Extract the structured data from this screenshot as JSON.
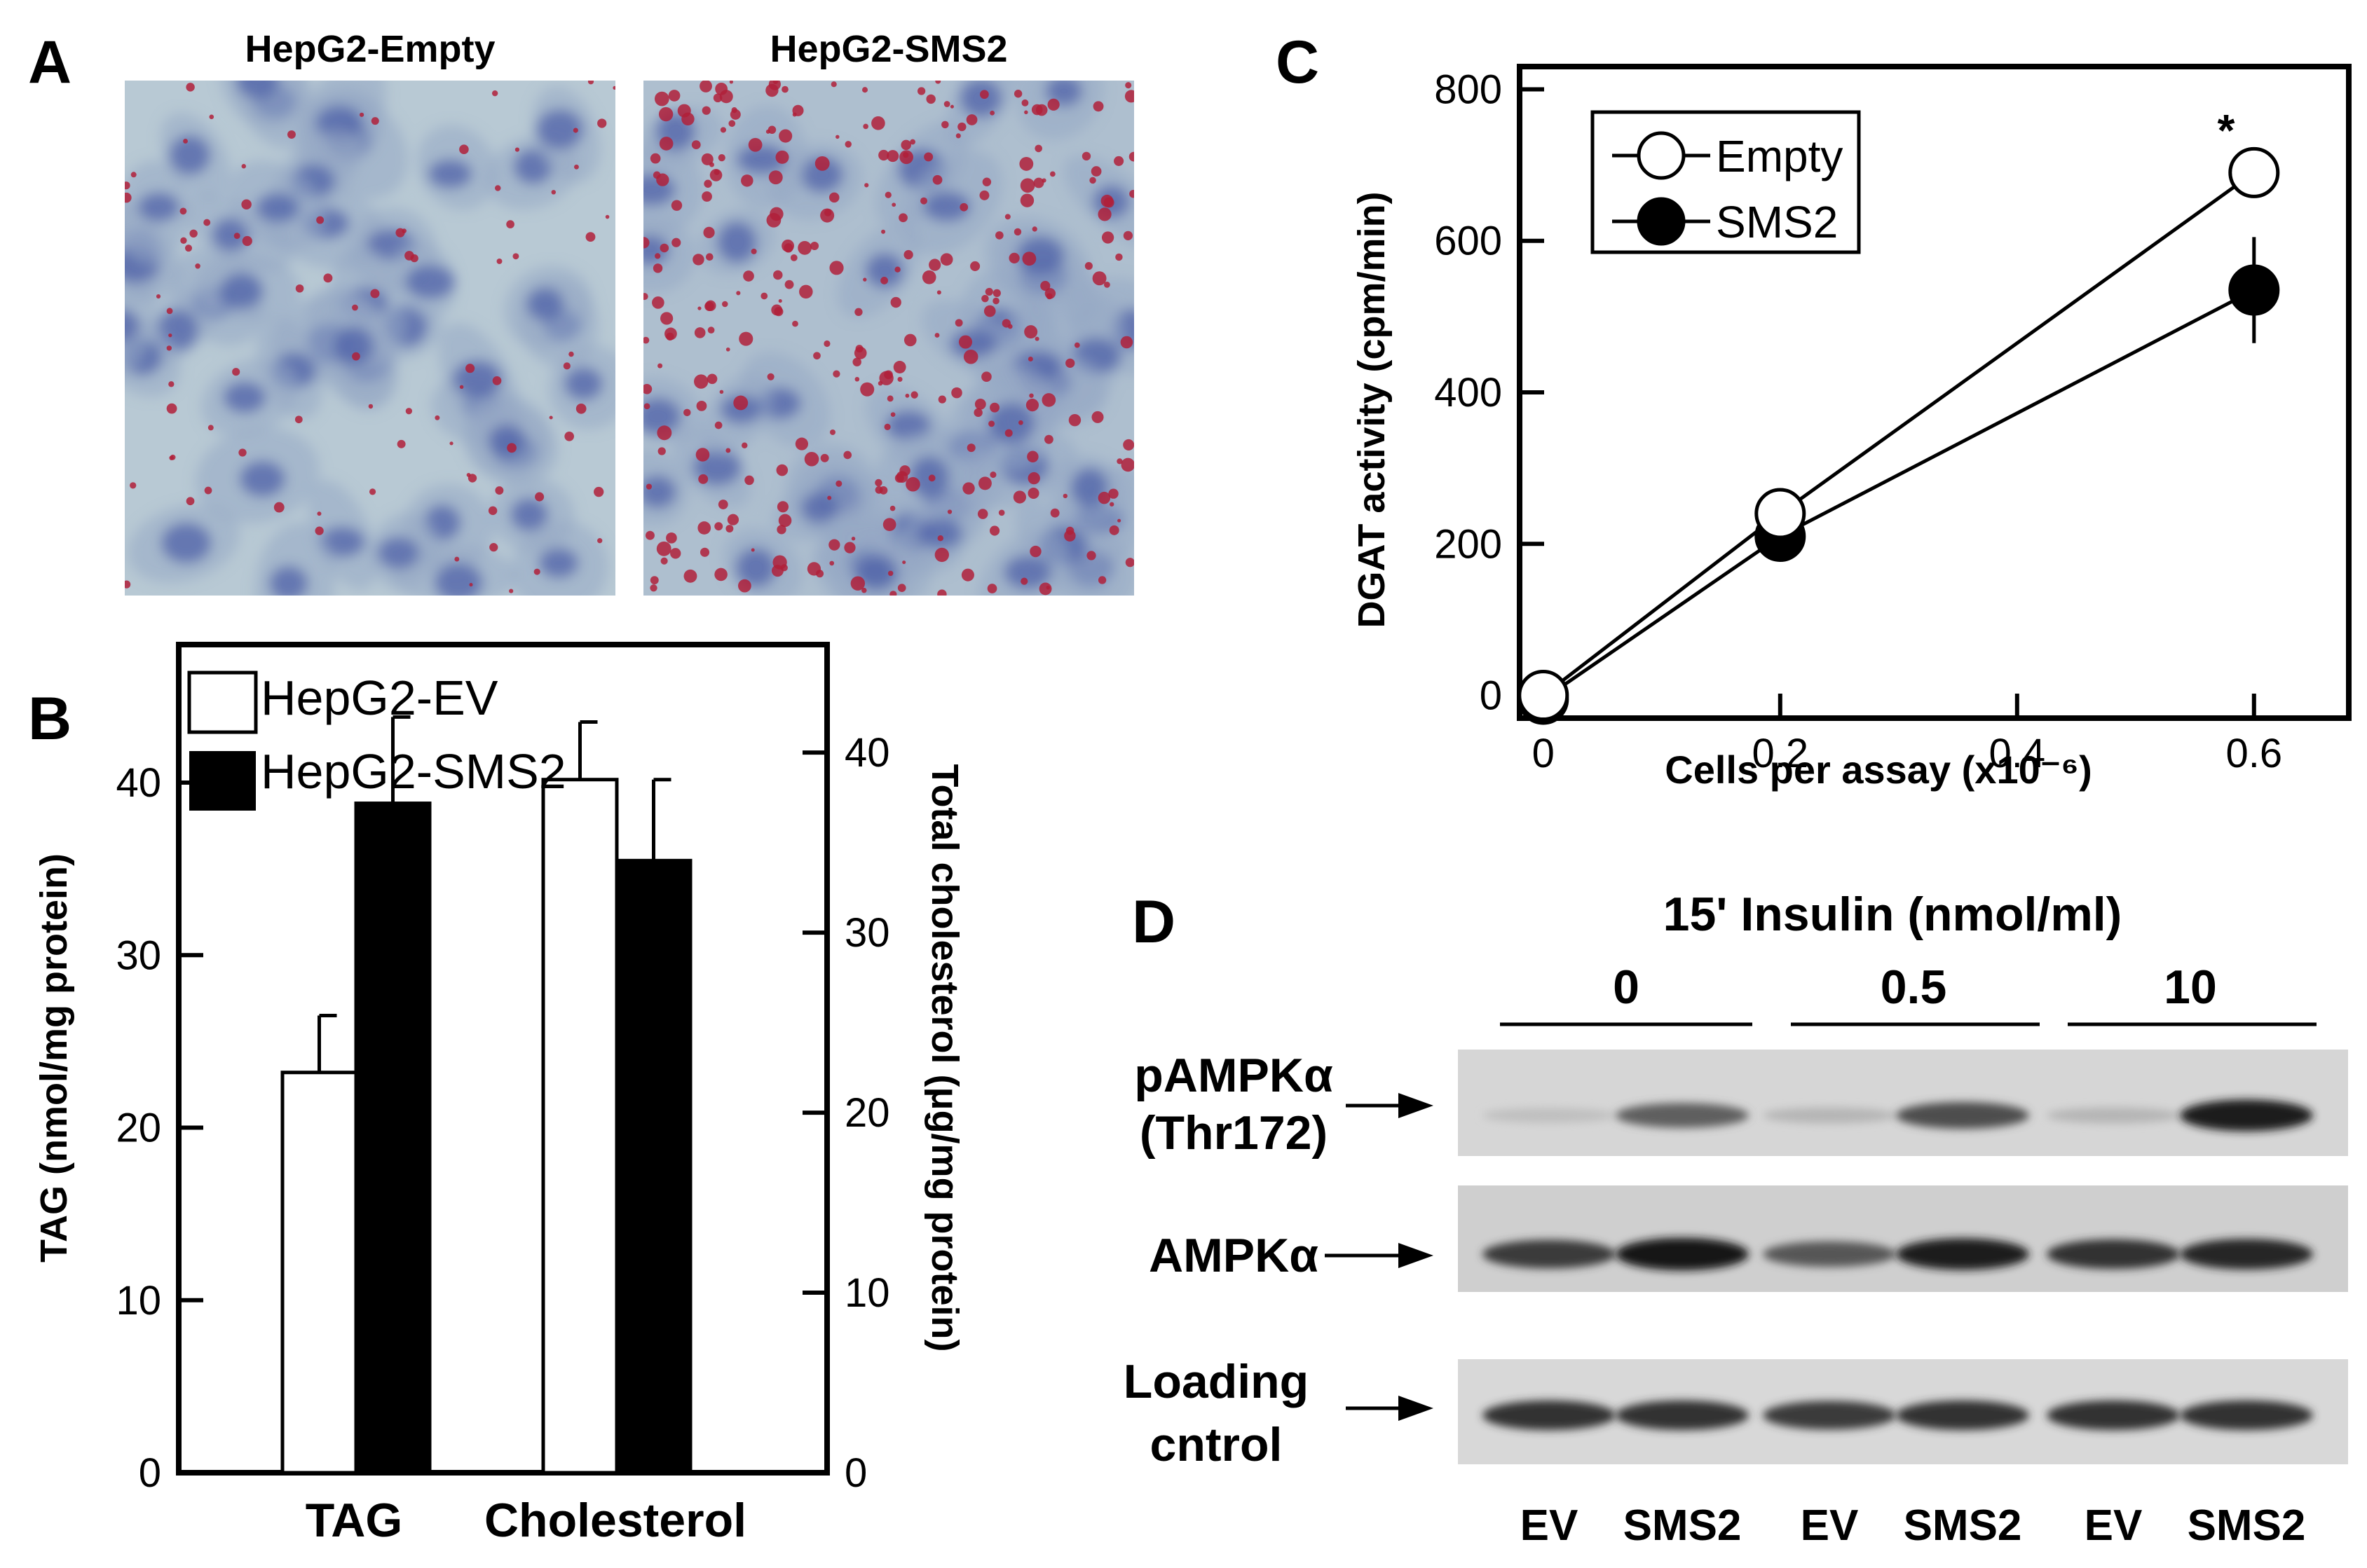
{
  "panelA": {
    "label": "A",
    "images": [
      {
        "title": "HepG2-Empty",
        "stain_density": 0.15
      },
      {
        "title": "HepG2-SMS2",
        "stain_density": 0.55
      }
    ]
  },
  "panelB": {
    "label": "B",
    "significance": "***",
    "legend": [
      "HepG2-EV",
      "HepG2-SMS2"
    ]
  },
  "panelC": {
    "label": "C",
    "significance": "*",
    "legend": [
      "Empty",
      "SMS2"
    ]
  },
  "panelD": {
    "label": "D",
    "title": "15' Insulin (nmol/ml)",
    "doses": [
      "0",
      "0.5",
      "10"
    ],
    "rows": [
      {
        "label_lines": [
          "pAMPKα",
          "(Thr172)"
        ]
      },
      {
        "label_lines": [
          "AMPKα"
        ]
      },
      {
        "label_lines": [
          "Loading",
          "cntrol"
        ]
      }
    ],
    "lanes": [
      "EV",
      "SMS2",
      "EV",
      "SMS2",
      "EV",
      "SMS2"
    ],
    "band_intensity": {
      "pAMPKα": [
        0.05,
        0.55,
        0.1,
        0.65,
        0.1,
        0.9
      ],
      "AMPKα": [
        0.75,
        0.95,
        0.6,
        0.9,
        0.8,
        0.85
      ],
      "Loading": [
        0.8,
        0.8,
        0.75,
        0.8,
        0.8,
        0.8
      ]
    }
  },
  "chart_data": [
    {
      "type": "bar",
      "categories": [
        "TAG",
        "Cholesterol"
      ],
      "series": [
        {
          "name": "HepG2-EV",
          "values": [
            23.2,
            38.5
          ],
          "errors": [
            3.3,
            3.2
          ]
        },
        {
          "name": "HepG2-SMS2",
          "values": [
            38.8,
            34.0
          ],
          "errors": [
            5.0,
            4.5
          ]
        }
      ],
      "ylabel": "TAG (nmol/mg protein)",
      "y2label": "Total cholesterol (μg/mg protein)",
      "ylim": [
        0,
        48
      ],
      "y2lim": [
        0,
        46
      ],
      "yticks": [
        0,
        10,
        20,
        30,
        40
      ],
      "y2ticks": [
        0,
        10,
        20,
        30,
        40
      ],
      "colors": {
        "HepG2-EV": "#ffffff",
        "HepG2-SMS2": "#000000"
      }
    },
    {
      "type": "line",
      "x": [
        0,
        0.2,
        0.6
      ],
      "series": [
        {
          "name": "Empty",
          "values": [
            0,
            240,
            690
          ],
          "errors": [
            10,
            12,
            30
          ],
          "marker": "open-circle"
        },
        {
          "name": "SMS2",
          "values": [
            -5,
            210,
            535
          ],
          "errors": [
            10,
            10,
            70
          ],
          "marker": "filled-circle"
        }
      ],
      "xlabel": "Cells per assay (x10⁻⁶)",
      "ylabel": "DGAT activity (cpm/min)",
      "xlim": [
        -0.02,
        0.68
      ],
      "ylim": [
        -30,
        830
      ],
      "xticks": [
        "0",
        "0.2",
        "0.4",
        "0.6"
      ],
      "yticks": [
        "0",
        "200",
        "400",
        "600",
        "800"
      ]
    }
  ]
}
